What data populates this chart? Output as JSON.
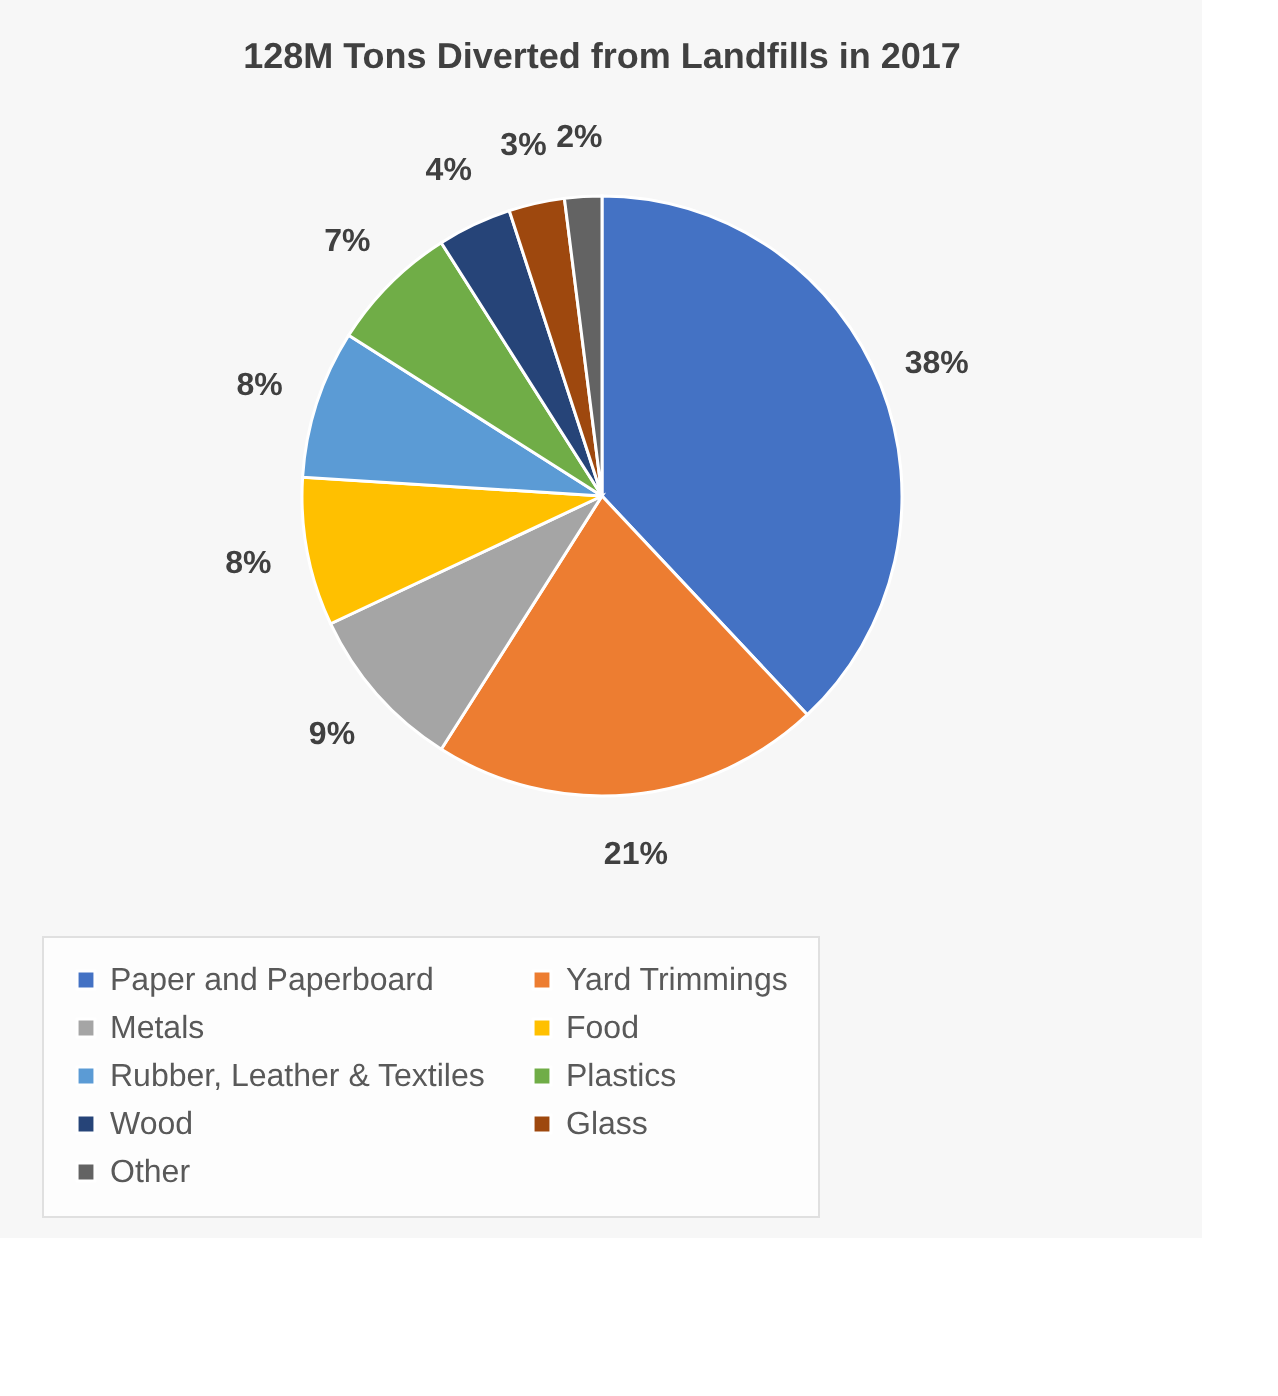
{
  "chart_data": {
    "type": "pie",
    "title": "128M Tons Diverted from Landfills in 2017",
    "categories": [
      "Paper and Paperboard",
      "Yard Trimmings",
      "Metals",
      "Food",
      "Rubber, Leather & Textiles",
      "Plastics",
      "Wood",
      "Glass",
      "Other"
    ],
    "values": [
      38,
      21,
      9,
      8,
      8,
      7,
      4,
      3,
      2
    ],
    "value_labels": [
      "38%",
      "21%",
      "9%",
      "8%",
      "8%",
      "7%",
      "4%",
      "3%",
      "2%"
    ],
    "colors": [
      "#4472c4",
      "#ed7d31",
      "#a5a5a5",
      "#ffc000",
      "#5b9bd5",
      "#70ad47",
      "#264478",
      "#9e480e",
      "#636363"
    ],
    "legend": "bottom"
  }
}
